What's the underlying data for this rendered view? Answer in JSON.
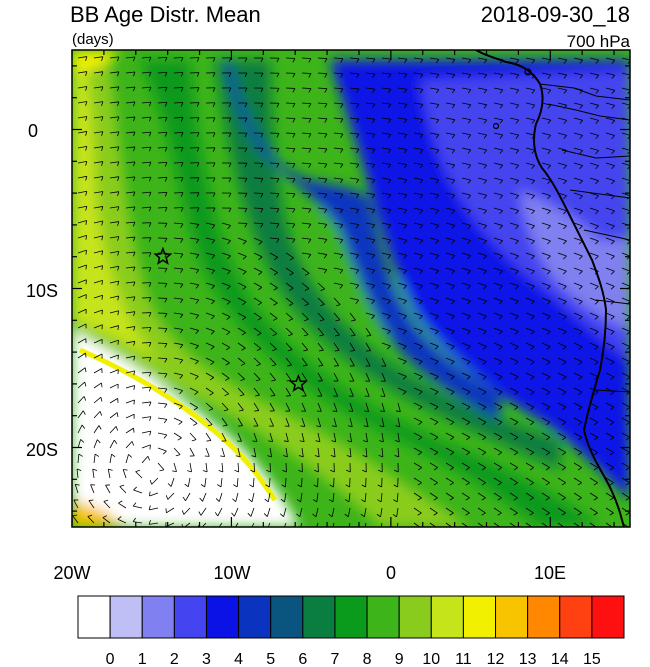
{
  "header": {
    "title": "BB Age Distr. Mean",
    "units": "(days)",
    "datetime": "2018-09-30_18",
    "level": "700 hPa"
  },
  "axes": {
    "x_ticks": [
      "20W",
      "10W",
      "0",
      "10E"
    ],
    "x_tick_values": [
      -20,
      -10,
      0,
      10
    ],
    "y_ticks": [
      "0",
      "10S",
      "20S"
    ],
    "y_tick_values": [
      0,
      -10,
      -20
    ],
    "lon_range": [
      -20,
      15
    ],
    "lat_range": [
      -25,
      5
    ]
  },
  "colorbar": {
    "labels": [
      "0",
      "1",
      "2",
      "3",
      "4",
      "5",
      "6",
      "7",
      "8",
      "9",
      "10",
      "11",
      "12",
      "13",
      "14",
      "15"
    ],
    "colors": [
      "#ffffff",
      "#bfbff5",
      "#8080f0",
      "#4444f0",
      "#0a12e6",
      "#0a34c0",
      "#0a5580",
      "#0a7e40",
      "#0a9a1c",
      "#3cb41a",
      "#8acc1e",
      "#c6e41a",
      "#f0f000",
      "#f8c400",
      "#ff8800",
      "#ff4010",
      "#ff1010"
    ]
  },
  "map": {
    "markers": [
      {
        "name": "star",
        "lon": -14.3,
        "lat": -8.0
      },
      {
        "name": "star",
        "lon": -5.8,
        "lat": -16.0
      }
    ],
    "overlay": "wind-barbs",
    "land": "coastline-west-africa"
  }
}
